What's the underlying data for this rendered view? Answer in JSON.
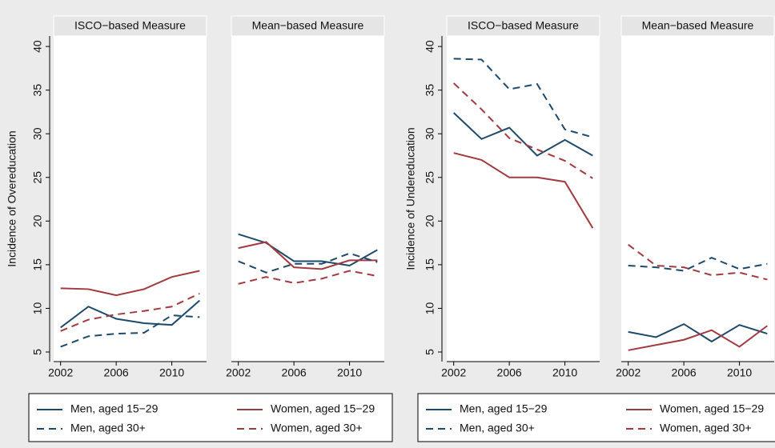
{
  "chart_data": [
    {
      "type": "line",
      "ylabel": "Incidence of Overeducation",
      "panel_titles": [
        "ISCO−based Measure",
        "Mean−based Measure"
      ],
      "x": [
        2002,
        2004,
        2006,
        2008,
        2010,
        2012
      ],
      "xlim": [
        2001.5,
        2012.5
      ],
      "xticks": [
        2002,
        2006,
        2010
      ],
      "ylim": [
        3.9,
        41.2
      ],
      "yticks": [
        5,
        10,
        15,
        20,
        25,
        30,
        35,
        40
      ],
      "series": [
        {
          "name": "Men, aged 15−29",
          "color": "#1d4a6b",
          "dashed": false,
          "values": [
            [
              7.8,
              10.2,
              8.8,
              8.3,
              8.1,
              10.9
            ],
            [
              18.5,
              17.5,
              15.4,
              15.4,
              14.9,
              16.7
            ]
          ]
        },
        {
          "name": "Women, aged 15−29",
          "color": "#a23a40",
          "dashed": false,
          "values": [
            [
              12.3,
              12.2,
              11.5,
              12.2,
              13.6,
              14.3
            ],
            [
              16.9,
              17.6,
              14.7,
              14.5,
              15.5,
              15.5
            ]
          ]
        },
        {
          "name": "Men, aged 30+",
          "color": "#1d4a6b",
          "dashed": true,
          "values": [
            [
              5.6,
              6.8,
              7.1,
              7.2,
              9.2,
              9.0
            ],
            [
              15.4,
              14.1,
              15.1,
              15.1,
              16.3,
              15.3
            ]
          ]
        },
        {
          "name": "Women, aged 30+",
          "color": "#a23a40",
          "dashed": true,
          "values": [
            [
              7.4,
              8.7,
              9.3,
              9.7,
              10.2,
              11.7
            ],
            [
              12.8,
              13.6,
              12.9,
              13.4,
              14.3,
              13.7
            ]
          ]
        }
      ]
    },
    {
      "type": "line",
      "ylabel": "Incidence of Undereducation",
      "panel_titles": [
        "ISCO−based Measure",
        "Mean−based Measure"
      ],
      "x": [
        2002,
        2004,
        2006,
        2008,
        2010,
        2012
      ],
      "xlim": [
        2001.5,
        2012.5
      ],
      "xticks": [
        2002,
        2006,
        2010
      ],
      "ylim": [
        3.9,
        41.2
      ],
      "yticks": [
        5,
        10,
        15,
        20,
        25,
        30,
        35,
        40
      ],
      "series": [
        {
          "name": "Men, aged 15−29",
          "color": "#1d4a6b",
          "dashed": false,
          "values": [
            [
              32.4,
              29.4,
              30.7,
              27.5,
              29.3,
              27.5
            ],
            [
              7.3,
              6.7,
              8.2,
              6.2,
              8.1,
              7.1
            ]
          ]
        },
        {
          "name": "Women, aged 15−29",
          "color": "#a23a40",
          "dashed": false,
          "values": [
            [
              27.8,
              27.0,
              25.0,
              25.0,
              24.5,
              19.2
            ],
            [
              5.2,
              5.8,
              6.4,
              7.5,
              5.6,
              8.0
            ]
          ]
        },
        {
          "name": "Men, aged 30+",
          "color": "#1d4a6b",
          "dashed": true,
          "values": [
            [
              38.6,
              38.5,
              35.1,
              35.7,
              30.5,
              29.6
            ],
            [
              14.9,
              14.7,
              14.3,
              15.8,
              14.5,
              15.1
            ]
          ]
        },
        {
          "name": "Women, aged 30+",
          "color": "#a23a40",
          "dashed": true,
          "values": [
            [
              35.8,
              32.8,
              29.5,
              28.2,
              26.9,
              24.9
            ],
            [
              17.3,
              14.9,
              14.7,
              13.8,
              14.1,
              13.3
            ]
          ]
        }
      ]
    }
  ]
}
